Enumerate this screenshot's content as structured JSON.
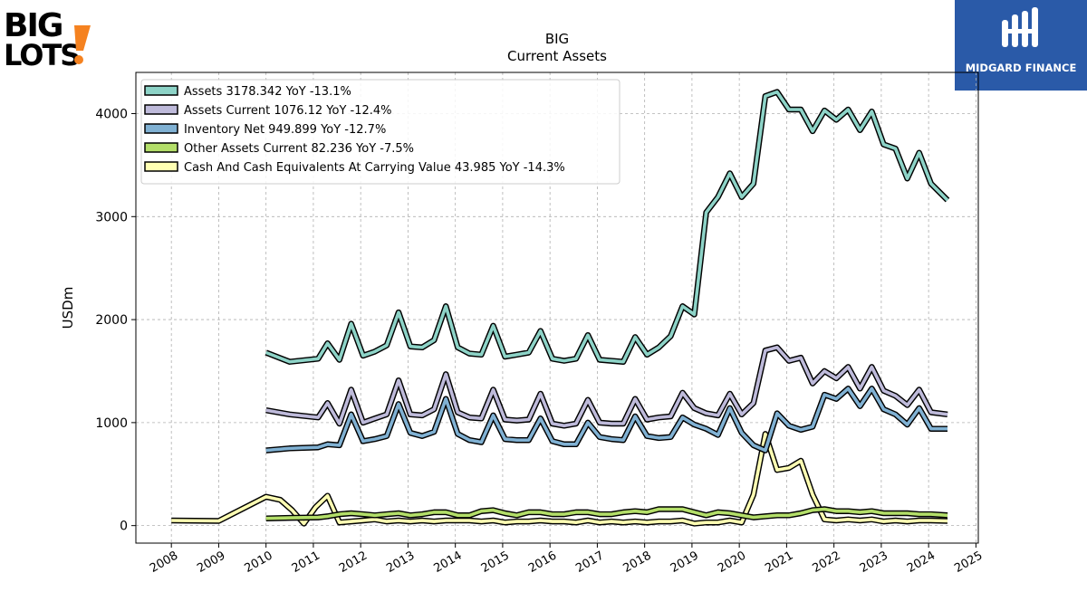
{
  "header": {
    "ticker": "BIG",
    "subtitle": "Current  Assets",
    "brand_logo_text": "BIG LOTS!",
    "sponsor_text": "MIDGARD FINANCE"
  },
  "colors": {
    "assets": "#8dd3c7",
    "assets_current": "#bebada",
    "inventory_net": "#80b1d3",
    "other_assets_current": "#b3de69",
    "cash": "#ffffb3",
    "sponsor_bg": "#2a5aa8"
  },
  "chart_data": {
    "type": "line",
    "title": "BIG",
    "subtitle": "Current  Assets",
    "xlabel": "",
    "ylabel": "USDm",
    "xlim": [
      2007.25,
      2025.05
    ],
    "ylim": [
      -170,
      4400
    ],
    "xticks": [
      2008,
      2009,
      2010,
      2011,
      2012,
      2013,
      2014,
      2015,
      2016,
      2017,
      2018,
      2019,
      2020,
      2021,
      2022,
      2023,
      2024,
      2025
    ],
    "yticks": [
      0,
      1000,
      2000,
      3000,
      4000
    ],
    "grid": true,
    "legend_position": "top-left",
    "series": [
      {
        "name": "Assets  3178.342 YoY -13.1%",
        "color_key": "assets",
        "x": [
          2010.0,
          2010.5,
          2011.1,
          2011.3,
          2011.55,
          2011.8,
          2012.05,
          2012.3,
          2012.55,
          2012.8,
          2013.05,
          2013.3,
          2013.55,
          2013.8,
          2014.05,
          2014.3,
          2014.55,
          2014.8,
          2015.05,
          2015.3,
          2015.55,
          2015.8,
          2016.05,
          2016.3,
          2016.55,
          2016.8,
          2017.05,
          2017.3,
          2017.55,
          2017.8,
          2018.05,
          2018.3,
          2018.55,
          2018.8,
          2019.05,
          2019.3,
          2019.55,
          2019.8,
          2020.05,
          2020.3,
          2020.55,
          2020.8,
          2021.05,
          2021.3,
          2021.55,
          2021.8,
          2022.05,
          2022.3,
          2022.55,
          2022.8,
          2023.05,
          2023.3,
          2023.55,
          2023.8,
          2024.05,
          2024.4
        ],
        "values": [
          1680,
          1590,
          1620,
          1770,
          1610,
          1960,
          1650,
          1690,
          1750,
          2070,
          1740,
          1730,
          1800,
          2130,
          1730,
          1670,
          1660,
          1940,
          1640,
          1660,
          1680,
          1890,
          1620,
          1600,
          1620,
          1850,
          1610,
          1600,
          1590,
          1830,
          1660,
          1730,
          1840,
          2130,
          2050,
          3040,
          3190,
          3420,
          3190,
          3320,
          4170,
          4210,
          4040,
          4040,
          3830,
          4030,
          3940,
          4040,
          3840,
          4020,
          3700,
          3660,
          3370,
          3620,
          3320,
          3160
        ]
      },
      {
        "name": "Assets Current  1076.12 YoY -12.4%",
        "color_key": "assets_current",
        "x": [
          2010.0,
          2010.5,
          2011.1,
          2011.3,
          2011.55,
          2011.8,
          2012.05,
          2012.3,
          2012.55,
          2012.8,
          2013.05,
          2013.3,
          2013.55,
          2013.8,
          2014.05,
          2014.3,
          2014.55,
          2014.8,
          2015.05,
          2015.3,
          2015.55,
          2015.8,
          2016.05,
          2016.3,
          2016.55,
          2016.8,
          2017.05,
          2017.3,
          2017.55,
          2017.8,
          2018.05,
          2018.3,
          2018.55,
          2018.8,
          2019.05,
          2019.3,
          2019.55,
          2019.8,
          2020.05,
          2020.3,
          2020.55,
          2020.8,
          2021.05,
          2021.3,
          2021.55,
          2021.8,
          2022.05,
          2022.3,
          2022.55,
          2022.8,
          2023.05,
          2023.3,
          2023.55,
          2023.8,
          2024.05,
          2024.4
        ],
        "values": [
          1120,
          1080,
          1050,
          1190,
          990,
          1320,
          1000,
          1040,
          1080,
          1410,
          1080,
          1070,
          1130,
          1470,
          1100,
          1050,
          1040,
          1320,
          1030,
          1020,
          1030,
          1280,
          990,
          970,
          990,
          1220,
          1000,
          990,
          990,
          1230,
          1030,
          1050,
          1060,
          1290,
          1140,
          1090,
          1070,
          1280,
          1080,
          1190,
          1700,
          1730,
          1600,
          1630,
          1380,
          1500,
          1430,
          1540,
          1330,
          1540,
          1310,
          1260,
          1170,
          1320,
          1100,
          1080
        ]
      },
      {
        "name": "Inventory Net  949.899 YoY -12.7%",
        "color_key": "inventory_net",
        "x": [
          2010.0,
          2010.5,
          2011.1,
          2011.3,
          2011.55,
          2011.8,
          2012.05,
          2012.3,
          2012.55,
          2012.8,
          2013.05,
          2013.3,
          2013.55,
          2013.8,
          2014.05,
          2014.3,
          2014.55,
          2014.8,
          2015.05,
          2015.3,
          2015.55,
          2015.8,
          2016.05,
          2016.3,
          2016.55,
          2016.8,
          2017.05,
          2017.3,
          2017.55,
          2017.8,
          2018.05,
          2018.3,
          2018.55,
          2018.8,
          2019.05,
          2019.3,
          2019.55,
          2019.8,
          2020.05,
          2020.3,
          2020.55,
          2020.8,
          2021.05,
          2021.3,
          2021.55,
          2021.8,
          2022.05,
          2022.3,
          2022.55,
          2022.8,
          2023.05,
          2023.3,
          2023.55,
          2023.8,
          2024.05,
          2024.4
        ],
        "values": [
          730,
          750,
          760,
          790,
          780,
          1080,
          820,
          840,
          870,
          1180,
          900,
          870,
          910,
          1230,
          890,
          830,
          810,
          1070,
          840,
          830,
          830,
          1040,
          820,
          790,
          790,
          1000,
          860,
          840,
          830,
          1060,
          870,
          850,
          860,
          1050,
          980,
          940,
          880,
          1140,
          900,
          780,
          730,
          1090,
          970,
          930,
          960,
          1270,
          1230,
          1330,
          1160,
          1330,
          1130,
          1080,
          980,
          1140,
          940,
          940
        ]
      },
      {
        "name": "Other Assets Current  82.236 YoY -7.5%",
        "color_key": "other_assets_current",
        "x": [
          2010.0,
          2010.5,
          2011.1,
          2011.3,
          2011.55,
          2011.8,
          2012.05,
          2012.3,
          2012.55,
          2012.8,
          2013.05,
          2013.3,
          2013.55,
          2013.8,
          2014.05,
          2014.3,
          2014.55,
          2014.8,
          2015.05,
          2015.3,
          2015.55,
          2015.8,
          2016.05,
          2016.3,
          2016.55,
          2016.8,
          2017.05,
          2017.3,
          2017.55,
          2017.8,
          2018.05,
          2018.3,
          2018.55,
          2018.8,
          2019.05,
          2019.3,
          2019.55,
          2019.8,
          2020.05,
          2020.3,
          2020.55,
          2020.8,
          2021.05,
          2021.3,
          2021.55,
          2021.8,
          2022.05,
          2022.3,
          2022.55,
          2022.8,
          2023.05,
          2023.3,
          2023.55,
          2023.8,
          2024.05,
          2024.4
        ],
        "values": [
          70,
          75,
          80,
          90,
          110,
          120,
          110,
          100,
          110,
          120,
          100,
          110,
          130,
          130,
          100,
          100,
          140,
          150,
          120,
          100,
          130,
          130,
          110,
          110,
          130,
          130,
          110,
          110,
          130,
          140,
          130,
          160,
          160,
          160,
          130,
          100,
          130,
          120,
          100,
          80,
          90,
          100,
          100,
          120,
          150,
          160,
          140,
          140,
          130,
          140,
          120,
          120,
          120,
          110,
          110,
          100
        ]
      },
      {
        "name": "Cash And Cash Equivalents At Carrying Value  43.985 YoY -14.3%",
        "color_key": "cash",
        "x": [
          2008.0,
          2009.0,
          2010.0,
          2010.3,
          2010.55,
          2010.8,
          2011.05,
          2011.3,
          2011.55,
          2011.8,
          2012.05,
          2012.3,
          2012.55,
          2012.8,
          2013.05,
          2013.3,
          2013.55,
          2013.8,
          2014.05,
          2014.3,
          2014.55,
          2014.8,
          2015.05,
          2015.3,
          2015.55,
          2015.8,
          2016.05,
          2016.3,
          2016.55,
          2016.8,
          2017.05,
          2017.3,
          2017.55,
          2017.8,
          2018.05,
          2018.3,
          2018.55,
          2018.8,
          2019.05,
          2019.3,
          2019.55,
          2019.8,
          2020.05,
          2020.3,
          2020.55,
          2020.8,
          2021.05,
          2021.3,
          2021.55,
          2021.8,
          2022.05,
          2022.3,
          2022.55,
          2022.8,
          2023.05,
          2023.3,
          2023.55,
          2023.8,
          2024.05,
          2024.4
        ],
        "values": [
          50,
          45,
          280,
          250,
          150,
          20,
          180,
          290,
          30,
          40,
          50,
          60,
          40,
          50,
          40,
          50,
          40,
          50,
          50,
          50,
          40,
          50,
          30,
          40,
          40,
          50,
          40,
          40,
          30,
          50,
          30,
          40,
          30,
          40,
          30,
          40,
          40,
          50,
          20,
          30,
          30,
          50,
          30,
          300,
          890,
          540,
          560,
          630,
          300,
          60,
          50,
          60,
          50,
          60,
          40,
          50,
          40,
          50,
          50,
          45
        ]
      }
    ]
  }
}
